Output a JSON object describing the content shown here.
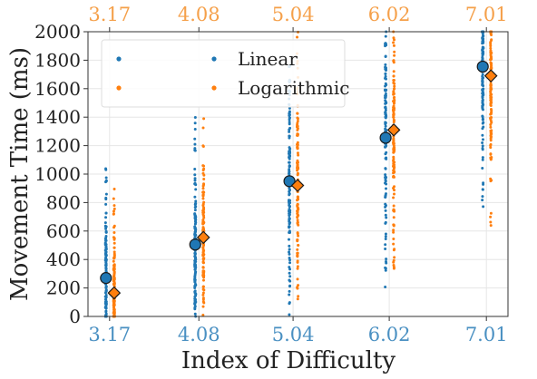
{
  "chart_data": {
    "type": "scatter",
    "xlabel": "Index of Difficulty",
    "ylabel": "Movement Time (ms)",
    "ylim": [
      0,
      2000
    ],
    "yticks": [
      0,
      200,
      400,
      600,
      800,
      1000,
      1200,
      1400,
      1600,
      1800,
      2000
    ],
    "grid": true,
    "legend_position": "top-left",
    "bottom_tick_labels": [
      "3.17",
      "4.08",
      "5.04",
      "6.02",
      "7.01"
    ],
    "top_tick_labels": [
      "3.17",
      "4.08",
      "5.04",
      "6.02",
      "7.01"
    ],
    "bottom_tick_color": "#4a90c2",
    "top_tick_color": "#f5a04a",
    "series": [
      {
        "name": "Linear",
        "color": "#1f77b4",
        "means": [
          {
            "id": 3.17,
            "mt": 270
          },
          {
            "id": 4.08,
            "mt": 505
          },
          {
            "id": 5.04,
            "mt": 950
          },
          {
            "id": 6.02,
            "mt": 1255
          },
          {
            "id": 7.01,
            "mt": 1755
          }
        ],
        "scatter_ranges": [
          {
            "id": 3.17,
            "min": 0,
            "max": 1040
          },
          {
            "id": 4.08,
            "min": 0,
            "max": 1440
          },
          {
            "id": 5.04,
            "min": 0,
            "max": 2000
          },
          {
            "id": 6.02,
            "min": 120,
            "max": 2000
          },
          {
            "id": 7.01,
            "min": 740,
            "max": 2000
          }
        ]
      },
      {
        "name": "Logarithmic",
        "color": "#ff7f0e",
        "means": [
          {
            "id": 3.17,
            "mt": 165
          },
          {
            "id": 4.08,
            "mt": 555
          },
          {
            "id": 5.04,
            "mt": 920
          },
          {
            "id": 6.02,
            "mt": 1310
          },
          {
            "id": 7.01,
            "mt": 1690
          }
        ],
        "scatter_ranges": [
          {
            "id": 3.17,
            "min": 0,
            "max": 900
          },
          {
            "id": 4.08,
            "min": 0,
            "max": 1390
          },
          {
            "id": 5.04,
            "min": 40,
            "max": 2000
          },
          {
            "id": 6.02,
            "min": 180,
            "max": 2000
          },
          {
            "id": 7.01,
            "min": 600,
            "max": 2000
          }
        ]
      }
    ]
  }
}
